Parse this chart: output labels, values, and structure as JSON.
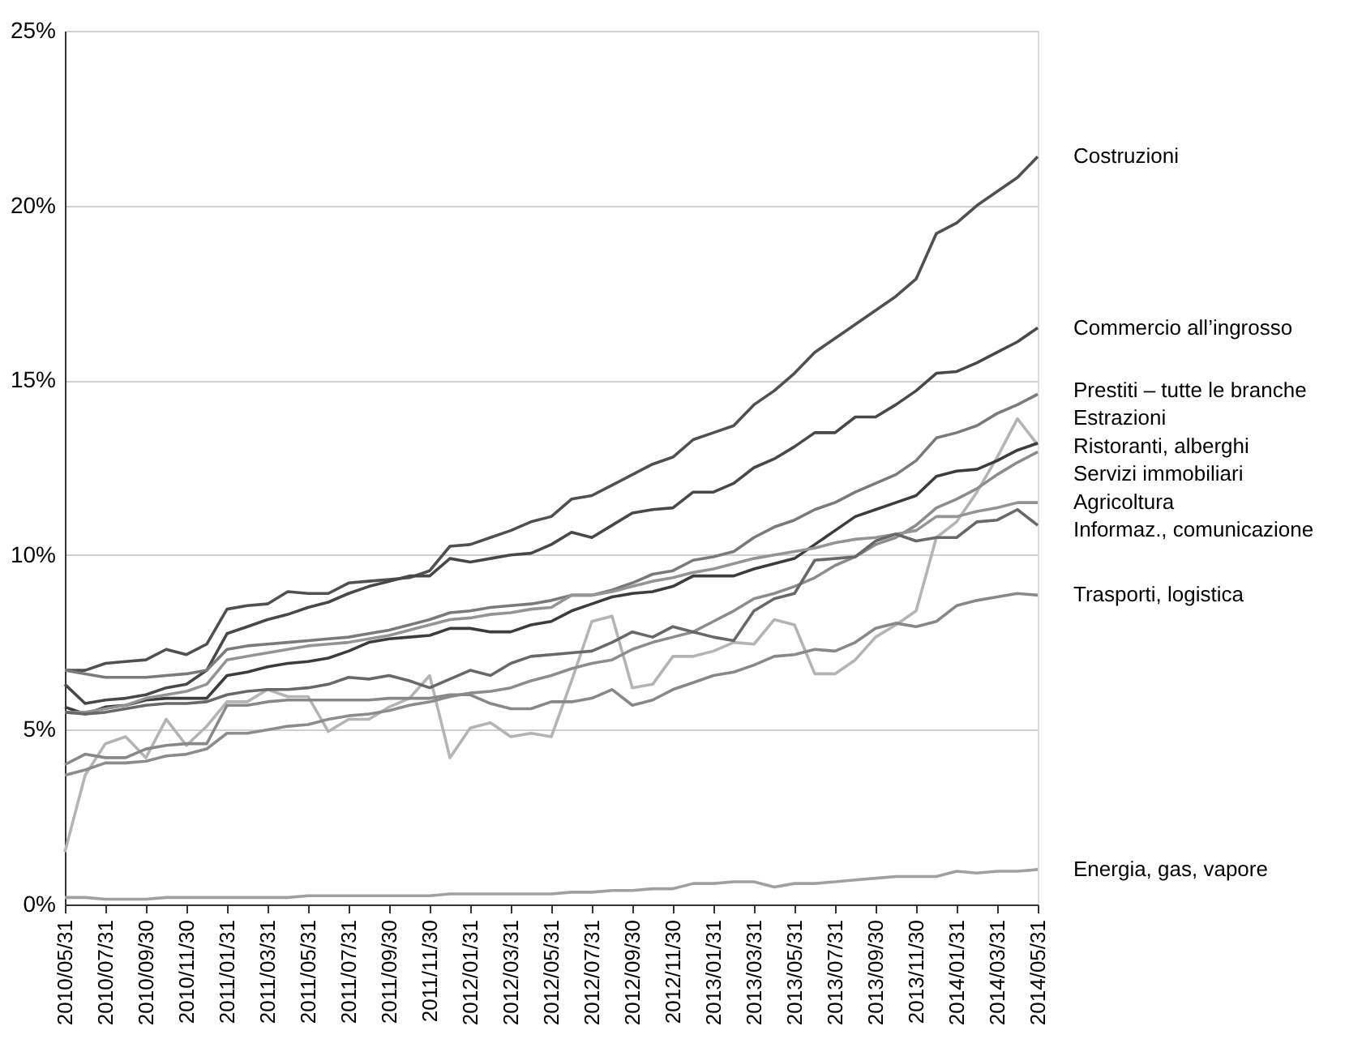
{
  "chart_data": {
    "type": "line",
    "categories": [
      "2010/05/31",
      null,
      "2010/07/31",
      null,
      "2010/09/30",
      null,
      "2010/11/30",
      null,
      "2011/01/31",
      null,
      "2011/03/31",
      null,
      "2011/05/31",
      null,
      "2011/07/31",
      null,
      "2011/09/30",
      null,
      "2011/11/30",
      null,
      "2012/01/31",
      null,
      "2012/03/31",
      null,
      "2012/05/31",
      null,
      "2012/07/31",
      null,
      "2012/09/30",
      null,
      "2012/11/30",
      null,
      "2013/01/31",
      null,
      "2013/03/31",
      null,
      "2013/05/31",
      null,
      "2013/07/31",
      null,
      "2013/09/30",
      null,
      "2013/11/30",
      null,
      "2014/01/31",
      null,
      "2014/03/31",
      null,
      "2014/05/31"
    ],
    "ylim": [
      0,
      25
    ],
    "yticks": [
      {
        "value": 0,
        "label": "0%"
      },
      {
        "value": 5,
        "label": "5%"
      },
      {
        "value": 10,
        "label": "10%"
      },
      {
        "value": 15,
        "label": "15%"
      },
      {
        "value": 20,
        "label": "20%"
      },
      {
        "value": 25,
        "label": "25%"
      }
    ],
    "grid": "y",
    "legend": false,
    "line_style": "solid",
    "series": [
      {
        "name": "Costruzioni",
        "color": "#505050",
        "values": [
          6.7,
          6.7,
          6.9,
          6.95,
          7.0,
          7.3,
          7.15,
          7.45,
          8.45,
          8.55,
          8.6,
          8.95,
          8.9,
          8.9,
          9.2,
          9.25,
          9.3,
          9.35,
          9.55,
          10.25,
          10.3,
          10.5,
          10.7,
          10.95,
          11.1,
          11.6,
          11.7,
          12.0,
          12.3,
          12.6,
          12.8,
          13.3,
          13.5,
          13.7,
          14.3,
          14.7,
          15.2,
          15.8,
          16.2,
          16.6,
          17.0,
          17.4,
          17.9,
          19.2,
          19.5,
          20.0,
          20.4,
          20.8,
          21.4
        ]
      },
      {
        "name": "Commercio all’ingrosso",
        "color": "#484848",
        "values": [
          6.3,
          5.75,
          5.85,
          5.9,
          6.0,
          6.2,
          6.3,
          6.7,
          7.75,
          7.95,
          8.15,
          8.3,
          8.5,
          8.65,
          8.9,
          9.1,
          9.25,
          9.4,
          9.4,
          9.9,
          9.8,
          9.9,
          10.0,
          10.05,
          10.3,
          10.65,
          10.5,
          10.85,
          11.2,
          11.3,
          11.35,
          11.8,
          11.8,
          12.05,
          12.5,
          12.75,
          13.1,
          13.5,
          13.5,
          13.95,
          13.95,
          14.3,
          14.7,
          15.2,
          15.25,
          15.5,
          15.8,
          16.1,
          16.5
        ]
      },
      {
        "name": "Prestiti – tutte le branche",
        "color": "#7a7a7a",
        "values": [
          6.7,
          6.6,
          6.5,
          6.5,
          6.5,
          6.55,
          6.6,
          6.7,
          7.3,
          7.4,
          7.45,
          7.5,
          7.55,
          7.6,
          7.65,
          7.75,
          7.85,
          8.0,
          8.15,
          8.35,
          8.4,
          8.5,
          8.55,
          8.6,
          8.7,
          8.85,
          8.85,
          9.0,
          9.2,
          9.45,
          9.55,
          9.85,
          9.95,
          10.1,
          10.5,
          10.8,
          11.0,
          11.3,
          11.5,
          11.8,
          12.05,
          12.3,
          12.7,
          13.35,
          13.5,
          13.7,
          14.05,
          14.3,
          14.6
        ]
      },
      {
        "name": "Estrazioni",
        "color": "#b4b4b4",
        "values": [
          1.5,
          3.7,
          4.6,
          4.8,
          4.2,
          5.3,
          4.55,
          5.1,
          5.8,
          5.8,
          6.15,
          5.95,
          5.95,
          4.95,
          5.3,
          5.3,
          5.65,
          5.9,
          6.55,
          4.2,
          5.05,
          5.2,
          4.8,
          4.9,
          4.8,
          6.4,
          8.1,
          8.25,
          6.2,
          6.3,
          7.1,
          7.1,
          7.25,
          7.5,
          7.45,
          8.15,
          8.0,
          6.6,
          6.6,
          7.0,
          7.65,
          8.0,
          8.4,
          10.5,
          10.95,
          11.8,
          12.8,
          13.9,
          13.15
        ]
      },
      {
        "name": "Ristoranti, alberghi",
        "color": "#3c3c3c",
        "values": [
          5.65,
          5.45,
          5.65,
          5.7,
          5.85,
          5.9,
          5.9,
          5.9,
          6.55,
          6.65,
          6.8,
          6.9,
          6.95,
          7.05,
          7.25,
          7.5,
          7.6,
          7.65,
          7.7,
          7.9,
          7.9,
          7.8,
          7.8,
          8.0,
          8.1,
          8.4,
          8.6,
          8.8,
          8.9,
          8.95,
          9.1,
          9.4,
          9.4,
          9.4,
          9.6,
          9.75,
          9.9,
          10.3,
          10.7,
          11.1,
          11.3,
          11.5,
          11.7,
          12.25,
          12.4,
          12.45,
          12.7,
          13.0,
          13.2
        ]
      },
      {
        "name": "Servizi immobiliari",
        "color": "#8c8c8c",
        "values": [
          3.7,
          3.85,
          4.05,
          4.05,
          4.1,
          4.25,
          4.3,
          4.45,
          4.9,
          4.9,
          5.0,
          5.1,
          5.15,
          5.3,
          5.4,
          5.45,
          5.55,
          5.7,
          5.8,
          5.95,
          6.05,
          6.1,
          6.2,
          6.4,
          6.55,
          6.75,
          6.9,
          7.0,
          7.3,
          7.5,
          7.65,
          7.8,
          8.1,
          8.4,
          8.75,
          8.9,
          9.1,
          9.35,
          9.7,
          9.95,
          10.3,
          10.5,
          10.85,
          11.35,
          11.6,
          11.9,
          12.3,
          12.65,
          12.95
        ]
      },
      {
        "name": "Agricoltura",
        "color": "#949494",
        "values": [
          5.5,
          5.5,
          5.6,
          5.7,
          5.9,
          6.0,
          6.1,
          6.3,
          7.0,
          7.1,
          7.2,
          7.3,
          7.4,
          7.45,
          7.5,
          7.6,
          7.7,
          7.85,
          8.0,
          8.15,
          8.2,
          8.3,
          8.35,
          8.45,
          8.5,
          8.85,
          8.85,
          8.95,
          9.1,
          9.25,
          9.35,
          9.5,
          9.6,
          9.75,
          9.9,
          10.0,
          10.1,
          10.2,
          10.35,
          10.45,
          10.5,
          10.6,
          10.7,
          11.1,
          11.1,
          11.25,
          11.35,
          11.5,
          11.5
        ]
      },
      {
        "name": "Informaz., comunicazione",
        "color": "#686868",
        "values": [
          5.5,
          5.45,
          5.5,
          5.6,
          5.7,
          5.75,
          5.75,
          5.8,
          6.0,
          6.1,
          6.15,
          6.15,
          6.2,
          6.3,
          6.5,
          6.45,
          6.55,
          6.4,
          6.2,
          6.45,
          6.7,
          6.55,
          6.9,
          7.1,
          7.15,
          7.2,
          7.25,
          7.5,
          7.8,
          7.65,
          7.95,
          7.8,
          7.65,
          7.55,
          8.4,
          8.75,
          8.9,
          9.85,
          9.9,
          9.95,
          10.4,
          10.6,
          10.4,
          10.5,
          10.5,
          10.95,
          11.0,
          11.3,
          10.85
        ]
      },
      {
        "name": "Trasporti, logistica",
        "color": "#888888",
        "values": [
          4.0,
          4.3,
          4.2,
          4.2,
          4.45,
          4.55,
          4.6,
          4.6,
          5.7,
          5.7,
          5.8,
          5.85,
          5.85,
          5.85,
          5.85,
          5.85,
          5.9,
          5.9,
          5.9,
          6.0,
          6.0,
          5.75,
          5.6,
          5.6,
          5.8,
          5.8,
          5.9,
          6.15,
          5.7,
          5.85,
          6.15,
          6.35,
          6.55,
          6.65,
          6.85,
          7.1,
          7.15,
          7.3,
          7.25,
          7.5,
          7.9,
          8.05,
          7.95,
          8.1,
          8.55,
          8.7,
          8.8,
          8.9,
          8.85
        ]
      },
      {
        "name": "Energia, gas, vapore",
        "color": "#a0a0a0",
        "values": [
          0.2,
          0.2,
          0.15,
          0.15,
          0.15,
          0.2,
          0.2,
          0.2,
          0.2,
          0.2,
          0.2,
          0.2,
          0.25,
          0.25,
          0.25,
          0.25,
          0.25,
          0.25,
          0.25,
          0.3,
          0.3,
          0.3,
          0.3,
          0.3,
          0.3,
          0.35,
          0.35,
          0.4,
          0.4,
          0.45,
          0.45,
          0.6,
          0.6,
          0.65,
          0.65,
          0.5,
          0.6,
          0.6,
          0.65,
          0.7,
          0.75,
          0.8,
          0.8,
          0.8,
          0.95,
          0.9,
          0.95,
          0.95,
          1.0
        ]
      }
    ]
  }
}
